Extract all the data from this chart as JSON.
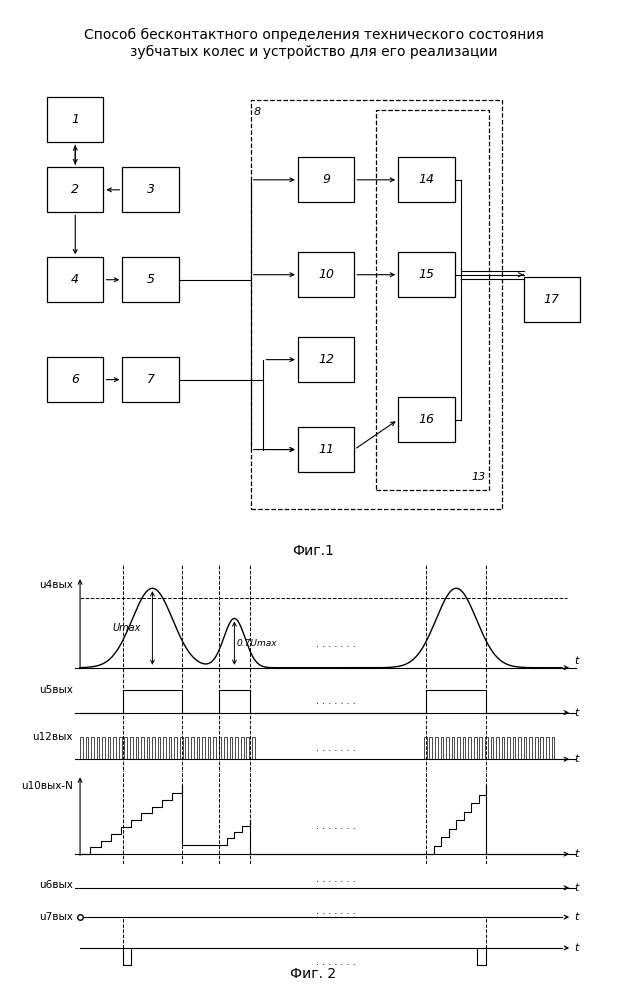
{
  "title_line1": "Способ бесконтактного определения технического состояния",
  "title_line2": "зубчатых колес и устройство для его реализации",
  "fig1_label": "Фиг.1",
  "fig2_label": "Фиг. 2",
  "background": "#ffffff",
  "signal_labels": [
    "u4вых",
    "u5вых",
    "u12вых",
    "u10вых-N",
    "u6вых",
    "u7вых"
  ]
}
